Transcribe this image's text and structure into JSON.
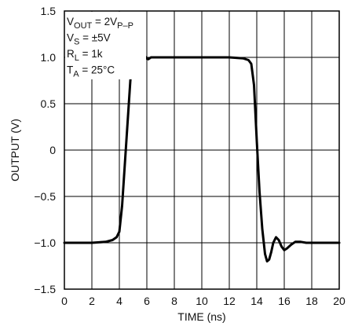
{
  "chart_data": {
    "type": "line",
    "title": "",
    "xlabel": "TIME (ns)",
    "ylabel": "OUTPUT (V)",
    "xlim": [
      0,
      20
    ],
    "ylim": [
      -1.5,
      1.5
    ],
    "grid": true,
    "x_ticks": [
      0,
      2,
      4,
      6,
      8,
      10,
      12,
      14,
      16,
      18,
      20
    ],
    "x_tick_labels": [
      "0",
      "2",
      "4",
      "6",
      "8",
      "10",
      "12",
      "14",
      "16",
      "18",
      "20"
    ],
    "y_ticks": [
      -1.5,
      -1.0,
      -0.5,
      0,
      0.5,
      1.0,
      1.5
    ],
    "y_tick_labels": [
      "−1.5",
      "−1.0",
      "−0.5",
      "0",
      "0.5",
      "1.0",
      "1.5"
    ],
    "annotations": [
      {
        "main": "V",
        "sub": "OUT",
        "rest": " = 2V",
        "sub2": "P–P"
      },
      {
        "main": "V",
        "sub": "S",
        "rest": " = ±5V",
        "sub2": ""
      },
      {
        "main": "R",
        "sub": "L",
        "rest": " = 1k",
        "sub2": ""
      },
      {
        "main": "T",
        "sub": "A",
        "rest": " = 25°C",
        "sub2": ""
      }
    ],
    "series": [
      {
        "color": "#000000",
        "x": [
          0,
          1,
          2,
          3,
          3.5,
          3.8,
          4.0,
          4.2,
          4.4,
          4.6,
          4.8,
          5.0,
          5.1,
          5.2,
          5.35,
          5.5,
          5.65,
          5.8,
          5.95,
          6.1,
          6.3,
          6.5,
          7,
          8,
          10,
          12,
          13,
          13.4,
          13.6,
          13.8,
          14.0,
          14.2,
          14.4,
          14.6,
          14.75,
          14.9,
          15.05,
          15.2,
          15.4,
          15.6,
          15.8,
          16.0,
          16.2,
          16.5,
          16.8,
          17.2,
          17.6,
          18,
          19,
          20
        ],
        "y": [
          -1.0,
          -1.0,
          -1.0,
          -0.99,
          -0.97,
          -0.94,
          -0.88,
          -0.6,
          -0.15,
          0.3,
          0.75,
          1.05,
          1.15,
          1.19,
          1.2,
          1.18,
          1.12,
          1.03,
          0.99,
          0.98,
          1.0,
          1.0,
          1.0,
          1.0,
          1.0,
          1.0,
          0.99,
          0.97,
          0.93,
          0.7,
          0.1,
          -0.45,
          -0.85,
          -1.12,
          -1.2,
          -1.18,
          -1.1,
          -1.0,
          -0.94,
          -0.97,
          -1.04,
          -1.08,
          -1.06,
          -1.02,
          -0.99,
          -0.99,
          -1.0,
          -1.0,
          -1.0,
          -1.0
        ]
      }
    ]
  }
}
